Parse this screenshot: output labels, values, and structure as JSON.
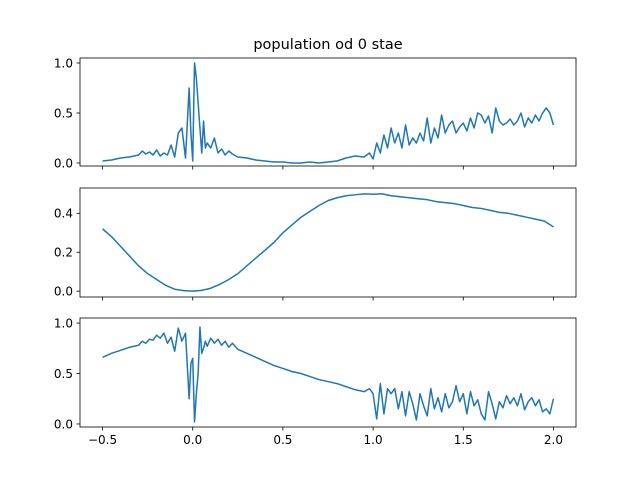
{
  "chart_data": {
    "type": "line",
    "title": "population od 0 stae",
    "subplots": [
      {
        "ylim": [
          -0.03,
          1.05
        ],
        "yticks": [
          0.0,
          0.5,
          1.0
        ],
        "ytick_labels": [
          "0.0",
          "0.5",
          "1.0"
        ],
        "color": "#1f77b4",
        "x": [
          -0.5,
          -0.45,
          -0.4,
          -0.35,
          -0.3,
          -0.28,
          -0.26,
          -0.24,
          -0.22,
          -0.2,
          -0.18,
          -0.16,
          -0.14,
          -0.12,
          -0.1,
          -0.08,
          -0.06,
          -0.04,
          -0.02,
          -0.01,
          0.0,
          0.01,
          0.02,
          0.03,
          0.04,
          0.05,
          0.06,
          0.07,
          0.08,
          0.1,
          0.12,
          0.14,
          0.16,
          0.18,
          0.2,
          0.22,
          0.25,
          0.3,
          0.35,
          0.4,
          0.45,
          0.5,
          0.55,
          0.6,
          0.65,
          0.7,
          0.75,
          0.8,
          0.85,
          0.9,
          0.95,
          0.98,
          1.0,
          1.02,
          1.04,
          1.06,
          1.08,
          1.1,
          1.12,
          1.14,
          1.16,
          1.18,
          1.2,
          1.22,
          1.24,
          1.26,
          1.28,
          1.3,
          1.32,
          1.34,
          1.36,
          1.38,
          1.4,
          1.42,
          1.44,
          1.46,
          1.48,
          1.5,
          1.52,
          1.54,
          1.56,
          1.58,
          1.6,
          1.62,
          1.64,
          1.66,
          1.68,
          1.7,
          1.72,
          1.74,
          1.76,
          1.78,
          1.8,
          1.82,
          1.84,
          1.86,
          1.88,
          1.9,
          1.92,
          1.94,
          1.96,
          1.98,
          2.0
        ],
        "y": [
          0.02,
          0.03,
          0.05,
          0.06,
          0.08,
          0.12,
          0.09,
          0.11,
          0.08,
          0.13,
          0.07,
          0.1,
          0.08,
          0.18,
          0.06,
          0.3,
          0.35,
          0.05,
          0.75,
          0.3,
          0.02,
          1.0,
          0.85,
          0.6,
          0.35,
          0.1,
          0.42,
          0.15,
          0.2,
          0.15,
          0.25,
          0.1,
          0.14,
          0.08,
          0.12,
          0.09,
          0.06,
          0.05,
          0.03,
          0.02,
          0.01,
          0.01,
          0.0,
          0.0,
          0.01,
          0.0,
          0.01,
          0.02,
          0.05,
          0.07,
          0.06,
          0.1,
          0.04,
          0.2,
          0.1,
          0.28,
          0.15,
          0.35,
          0.2,
          0.3,
          0.15,
          0.38,
          0.18,
          0.25,
          0.2,
          0.3,
          0.22,
          0.45,
          0.2,
          0.35,
          0.25,
          0.48,
          0.3,
          0.38,
          0.42,
          0.3,
          0.36,
          0.4,
          0.32,
          0.45,
          0.35,
          0.5,
          0.48,
          0.4,
          0.47,
          0.3,
          0.55,
          0.42,
          0.38,
          0.4,
          0.44,
          0.38,
          0.42,
          0.5,
          0.36,
          0.45,
          0.4,
          0.48,
          0.42,
          0.5,
          0.55,
          0.5,
          0.38
        ]
      },
      {
        "ylim": [
          -0.03,
          0.53
        ],
        "yticks": [
          0.0,
          0.2,
          0.4
        ],
        "ytick_labels": [
          "0.0",
          "0.2",
          "0.4"
        ],
        "color": "#1f77b4",
        "x": [
          -0.5,
          -0.45,
          -0.4,
          -0.35,
          -0.3,
          -0.25,
          -0.2,
          -0.15,
          -0.1,
          -0.05,
          0.0,
          0.05,
          0.1,
          0.15,
          0.2,
          0.25,
          0.3,
          0.35,
          0.4,
          0.45,
          0.5,
          0.55,
          0.6,
          0.65,
          0.7,
          0.75,
          0.8,
          0.85,
          0.9,
          0.95,
          1.0,
          1.05,
          1.1,
          1.15,
          1.2,
          1.25,
          1.3,
          1.35,
          1.4,
          1.45,
          1.5,
          1.55,
          1.6,
          1.65,
          1.7,
          1.75,
          1.8,
          1.85,
          1.9,
          1.95,
          2.0
        ],
        "y": [
          0.32,
          0.28,
          0.23,
          0.18,
          0.13,
          0.09,
          0.06,
          0.03,
          0.01,
          0.003,
          0.0,
          0.004,
          0.015,
          0.035,
          0.06,
          0.09,
          0.13,
          0.17,
          0.21,
          0.25,
          0.3,
          0.34,
          0.38,
          0.41,
          0.44,
          0.465,
          0.48,
          0.49,
          0.495,
          0.5,
          0.498,
          0.5,
          0.49,
          0.485,
          0.48,
          0.475,
          0.47,
          0.46,
          0.455,
          0.45,
          0.44,
          0.43,
          0.425,
          0.415,
          0.405,
          0.4,
          0.39,
          0.38,
          0.37,
          0.36,
          0.33
        ]
      },
      {
        "ylim": [
          -0.03,
          1.05
        ],
        "yticks": [
          0.0,
          0.5,
          1.0
        ],
        "ytick_labels": [
          "0.0",
          "0.5",
          "1.0"
        ],
        "color": "#1f77b4",
        "x": [
          -0.5,
          -0.45,
          -0.4,
          -0.35,
          -0.3,
          -0.28,
          -0.26,
          -0.24,
          -0.22,
          -0.2,
          -0.18,
          -0.16,
          -0.14,
          -0.12,
          -0.1,
          -0.08,
          -0.06,
          -0.04,
          -0.02,
          -0.01,
          0.0,
          0.01,
          0.02,
          0.03,
          0.04,
          0.05,
          0.06,
          0.07,
          0.08,
          0.1,
          0.12,
          0.14,
          0.16,
          0.18,
          0.2,
          0.22,
          0.25,
          0.3,
          0.35,
          0.4,
          0.45,
          0.5,
          0.55,
          0.6,
          0.65,
          0.7,
          0.75,
          0.8,
          0.85,
          0.9,
          0.95,
          0.98,
          1.0,
          1.02,
          1.04,
          1.06,
          1.08,
          1.1,
          1.12,
          1.14,
          1.16,
          1.18,
          1.2,
          1.22,
          1.24,
          1.26,
          1.28,
          1.3,
          1.32,
          1.34,
          1.36,
          1.38,
          1.4,
          1.42,
          1.44,
          1.46,
          1.48,
          1.5,
          1.52,
          1.54,
          1.56,
          1.58,
          1.6,
          1.62,
          1.64,
          1.66,
          1.68,
          1.7,
          1.72,
          1.74,
          1.76,
          1.78,
          1.8,
          1.82,
          1.84,
          1.86,
          1.88,
          1.9,
          1.92,
          1.94,
          1.96,
          1.98,
          2.0
        ],
        "y": [
          0.66,
          0.7,
          0.73,
          0.76,
          0.78,
          0.82,
          0.8,
          0.84,
          0.83,
          0.88,
          0.85,
          0.9,
          0.8,
          0.86,
          0.72,
          0.95,
          0.82,
          0.9,
          0.25,
          0.6,
          0.65,
          0.02,
          0.3,
          0.5,
          0.96,
          0.7,
          0.75,
          0.82,
          0.77,
          0.85,
          0.8,
          0.84,
          0.78,
          0.82,
          0.76,
          0.8,
          0.74,
          0.7,
          0.66,
          0.62,
          0.58,
          0.55,
          0.52,
          0.5,
          0.47,
          0.44,
          0.42,
          0.4,
          0.37,
          0.34,
          0.32,
          0.35,
          0.3,
          0.05,
          0.4,
          0.1,
          0.35,
          0.3,
          0.35,
          0.15,
          0.32,
          0.08,
          0.32,
          0.2,
          0.04,
          0.3,
          0.18,
          0.08,
          0.35,
          0.15,
          0.26,
          0.12,
          0.3,
          0.16,
          0.22,
          0.38,
          0.22,
          0.3,
          0.1,
          0.32,
          0.18,
          0.24,
          0.1,
          0.04,
          0.32,
          0.2,
          0.05,
          0.22,
          0.16,
          0.28,
          0.2,
          0.26,
          0.18,
          0.3,
          0.14,
          0.22,
          0.26,
          0.18,
          0.24,
          0.12,
          0.15,
          0.1,
          0.25
        ]
      }
    ],
    "xlim": [
      -0.625,
      2.125
    ],
    "xticks": [
      -0.5,
      0.0,
      0.5,
      1.0,
      1.5,
      2.0
    ],
    "xtick_labels": [
      "−0.5",
      "0.0",
      "0.5",
      "1.0",
      "1.5",
      "2.0"
    ],
    "grid": false
  }
}
